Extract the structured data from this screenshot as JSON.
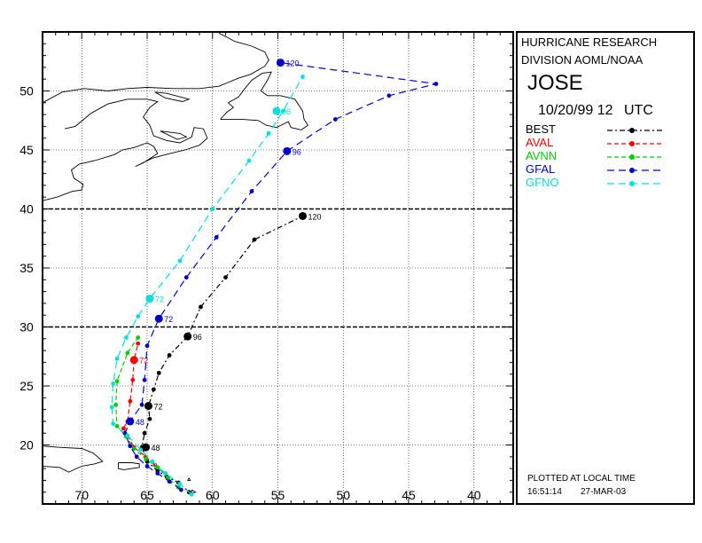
{
  "header": {
    "org_line1": "HURRICANE RESEARCH",
    "org_line2": "DIVISION AOML/NOAA",
    "storm_name": "JOSE",
    "date": "10/20/99 12",
    "tz": "UTC"
  },
  "legend": [
    {
      "name": "BEST",
      "color": "#000000",
      "dash": "6,3,2,3"
    },
    {
      "name": "AVAL",
      "color": "#ff0000",
      "dash": "5,3"
    },
    {
      "name": "AVNN",
      "color": "#00cc00",
      "dash": "5,3"
    },
    {
      "name": "GFAL",
      "color": "#0000cc",
      "dash": "8,5"
    },
    {
      "name": "GFNO",
      "color": "#00e0e0",
      "dash": "8,5"
    }
  ],
  "footer": {
    "note": "PLOTTED AT LOCAL TIME",
    "time": "16:51:14",
    "date": "27-MAR-03"
  },
  "axes": {
    "lon_labels": [
      "70",
      "65",
      "60",
      "55",
      "50",
      "45",
      "40"
    ],
    "lat_labels": [
      "20",
      "25",
      "30",
      "35",
      "40",
      "45",
      "50"
    ],
    "lon_range": [
      73,
      37
    ],
    "lat_range": [
      15,
      55
    ],
    "grid": "dotted every 5 degrees, heavy at 30N and 40N"
  },
  "chart_data": {
    "type": "map-tracks",
    "tracks": [
      {
        "name": "BEST",
        "color": "#000000",
        "points": [
          [
            61.8,
            16.0
          ],
          [
            62.6,
            16.8
          ],
          [
            63.5,
            17.3
          ],
          [
            64.2,
            17.8
          ],
          [
            65.0,
            18.6
          ],
          [
            65.4,
            19.8
          ],
          [
            65.2,
            21.0
          ],
          [
            64.8,
            22.2
          ],
          [
            64.9,
            23.3
          ],
          [
            64.5,
            24.7
          ],
          [
            64.1,
            26.1
          ],
          [
            63.3,
            27.6
          ],
          [
            61.9,
            29.2
          ],
          [
            60.9,
            31.7
          ],
          [
            59.0,
            34.2
          ],
          [
            56.8,
            37.4
          ],
          [
            53.1,
            39.4
          ]
        ],
        "labels": [
          {
            "text": "48",
            "at": [
              65.1,
              19.8
            ]
          },
          {
            "text": "72",
            "at": [
              64.9,
              23.3
            ]
          },
          {
            "text": "96",
            "at": [
              61.9,
              29.2
            ]
          },
          {
            "text": "120",
            "at": [
              53.1,
              39.4
            ]
          }
        ]
      },
      {
        "name": "AVAL",
        "color": "#ff0000",
        "points": [
          [
            63.6,
            17.6
          ],
          [
            64.4,
            18.3
          ],
          [
            65.1,
            19.0
          ],
          [
            66.0,
            19.8
          ],
          [
            66.8,
            21.4
          ],
          [
            66.5,
            22.0
          ],
          [
            66.3,
            23.7
          ],
          [
            66.1,
            25.5
          ],
          [
            66.0,
            27.2
          ],
          [
            65.7,
            28.6
          ]
        ],
        "labels": [
          {
            "text": "72",
            "at": [
              66.0,
              27.2
            ]
          }
        ]
      },
      {
        "name": "AVNN",
        "color": "#00cc00",
        "points": [
          [
            62.6,
            16.4
          ],
          [
            63.4,
            17.2
          ],
          [
            64.2,
            18.1
          ],
          [
            65.1,
            18.8
          ],
          [
            66.0,
            19.7
          ],
          [
            66.6,
            20.7
          ],
          [
            67.3,
            21.6
          ],
          [
            67.4,
            23.4
          ],
          [
            67.3,
            25.4
          ],
          [
            66.5,
            27.8
          ],
          [
            65.7,
            29.1
          ]
        ],
        "labels": []
      },
      {
        "name": "GFAL",
        "color": "#0000cc",
        "points": [
          [
            62.4,
            16.2
          ],
          [
            63.3,
            16.9
          ],
          [
            64.2,
            17.6
          ],
          [
            65.0,
            18.2
          ],
          [
            65.8,
            19.0
          ],
          [
            66.3,
            19.9
          ],
          [
            66.7,
            21.0
          ],
          [
            66.3,
            22.0
          ],
          [
            65.4,
            23.4
          ],
          [
            65.2,
            25.5
          ],
          [
            65.0,
            28.4
          ],
          [
            64.1,
            30.7
          ],
          [
            62.0,
            34.2
          ],
          [
            59.7,
            37.6
          ],
          [
            57.0,
            41.5
          ],
          [
            54.3,
            44.9
          ],
          [
            50.6,
            47.6
          ],
          [
            46.5,
            49.6
          ],
          [
            42.9,
            50.6
          ],
          [
            54.8,
            52.4
          ]
        ],
        "labels": [
          {
            "text": "48",
            "at": [
              66.3,
              22.0
            ]
          },
          {
            "text": "72",
            "at": [
              64.1,
              30.7
            ]
          },
          {
            "text": "96",
            "at": [
              54.3,
              44.9
            ]
          },
          {
            "text": "120",
            "at": [
              54.8,
              52.4
            ]
          }
        ]
      },
      {
        "name": "GFNO",
        "color": "#00e0e0",
        "points": [
          [
            61.6,
            15.8
          ],
          [
            62.5,
            16.7
          ],
          [
            63.6,
            17.6
          ],
          [
            64.6,
            18.6
          ],
          [
            65.5,
            19.6
          ],
          [
            66.5,
            20.8
          ],
          [
            67.6,
            21.8
          ],
          [
            67.7,
            23.2
          ],
          [
            67.6,
            25.2
          ],
          [
            67.3,
            27.3
          ],
          [
            66.6,
            29.1
          ],
          [
            65.7,
            30.9
          ],
          [
            64.8,
            32.4
          ],
          [
            62.5,
            35.6
          ],
          [
            60.0,
            40.0
          ],
          [
            57.2,
            44.1
          ],
          [
            55.7,
            46.4
          ],
          [
            54.6,
            48.3
          ],
          [
            53.1,
            51.2
          ]
        ],
        "labels": [
          {
            "text": "72",
            "at": [
              64.8,
              32.4
            ]
          },
          {
            "text": "96",
            "at": [
              55.1,
              48.3
            ]
          }
        ]
      }
    ]
  }
}
